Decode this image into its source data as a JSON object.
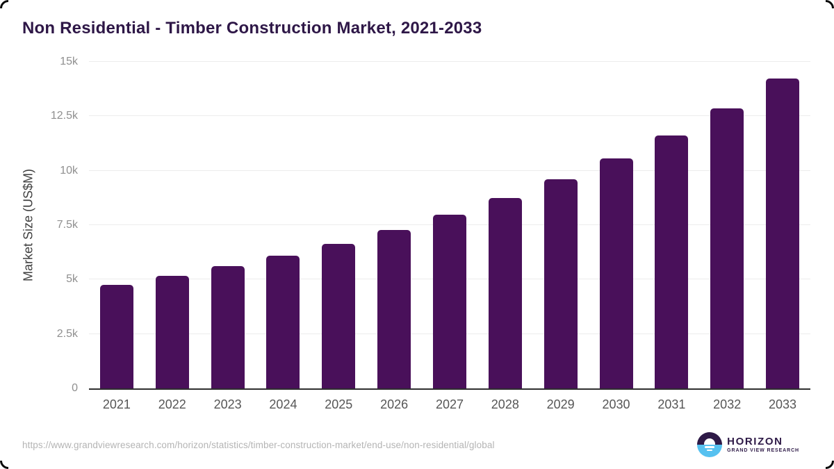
{
  "header": {
    "title": "Non Residential - Timber Construction Market, 2021-2033"
  },
  "chart_data": {
    "type": "bar",
    "title": "Non Residential - Timber Construction Market, 2021-2033",
    "categories": [
      "2021",
      "2022",
      "2023",
      "2024",
      "2025",
      "2026",
      "2027",
      "2028",
      "2029",
      "2030",
      "2031",
      "2032",
      "2033"
    ],
    "values": [
      4750,
      5160,
      5610,
      6100,
      6650,
      7290,
      7990,
      8760,
      9620,
      10570,
      11630,
      12860,
      14250
    ],
    "xlabel": "",
    "ylabel": "Market Size (US$M)",
    "ylim": [
      0,
      15000
    ],
    "yticks": [
      {
        "value": 0,
        "label": "0"
      },
      {
        "value": 2500,
        "label": "2.5k"
      },
      {
        "value": 5000,
        "label": "5k"
      },
      {
        "value": 7500,
        "label": "7.5k"
      },
      {
        "value": 10000,
        "label": "10k"
      },
      {
        "value": 12500,
        "label": "12.5k"
      },
      {
        "value": 15000,
        "label": "15k"
      }
    ],
    "grid": true,
    "legend": false,
    "bar_color": "#49105a"
  },
  "footer": {
    "source_url": "https://www.grandviewresearch.com/horizon/statistics/timber-construction-market/end-use/non-residential/global",
    "logo": {
      "name": "HORIZON",
      "subtitle": "GRAND VIEW RESEARCH"
    }
  },
  "colors": {
    "title": "#2e1747",
    "bar": "#49105a",
    "axis_line": "#2f2f2f",
    "gridline": "#ececec",
    "x_tick": "#565656",
    "y_tick": "#8f8f8f",
    "y_axis_title": "#3f3f3f",
    "url": "#b4b4b4",
    "logo_purple": "#2e1a47",
    "logo_blue": "#56c1f0"
  }
}
